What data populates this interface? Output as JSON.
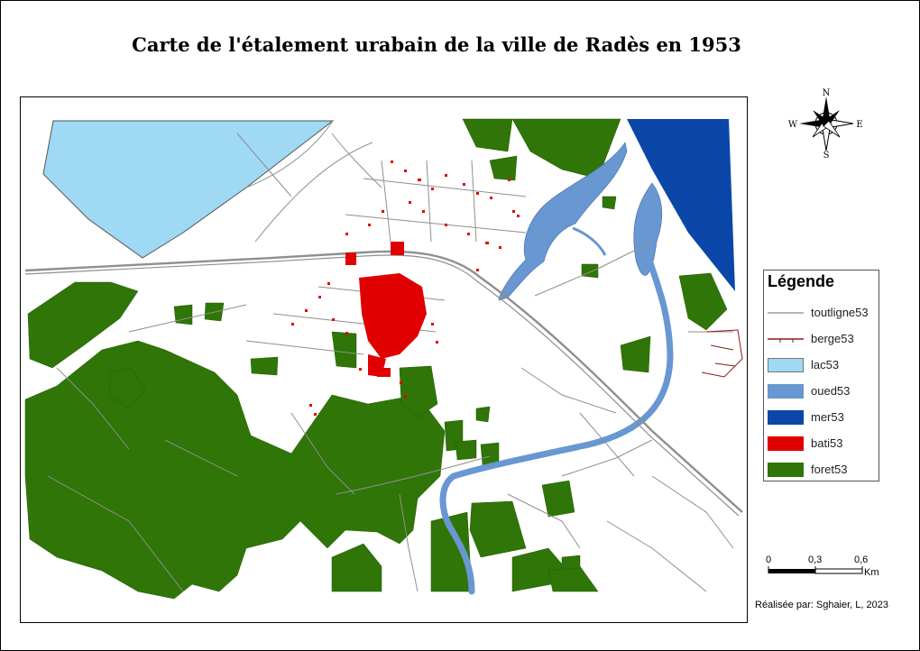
{
  "title": "Carte de l'étalement urabain de la ville de Radès en 1953",
  "north_arrow": {
    "n": "N",
    "s": "S",
    "e": "E",
    "w": "W"
  },
  "legend": {
    "title": "Légende",
    "items": [
      {
        "id": "toutligne",
        "label": "toutligne53",
        "color": "#9e9e9e"
      },
      {
        "id": "berge",
        "label": "berge53",
        "color": "#8b1a1a"
      },
      {
        "id": "lac",
        "label": "lac53",
        "color": "#9fd9f4"
      },
      {
        "id": "oued",
        "label": "oued53",
        "color": "#6897d2"
      },
      {
        "id": "mer",
        "label": "mer53",
        "color": "#0a47a8"
      },
      {
        "id": "bati",
        "label": "bati53",
        "color": "#e00000"
      },
      {
        "id": "foret",
        "label": "foret53",
        "color": "#2f7507"
      }
    ]
  },
  "scale": {
    "ticks": [
      "0",
      "0,3",
      "0,6"
    ],
    "unit": "Km"
  },
  "credit": "Réalisée par: Sghaier, L, 2023"
}
